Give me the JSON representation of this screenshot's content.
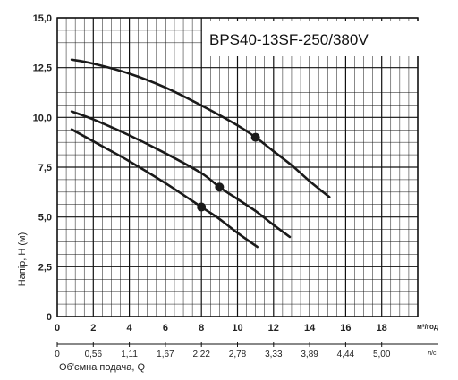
{
  "chart_data": {
    "type": "line",
    "title": "BPS40-13SF-250/380V",
    "ylabel": "Напір, H (м)",
    "xlabel": "Об'ємна  подача, Q",
    "x_unit": "м³/год",
    "x2_unit": "л/с",
    "xlim": [
      0,
      20
    ],
    "ylim": [
      0,
      15
    ],
    "x_ticks": [
      "0",
      "2",
      "4",
      "6",
      "8",
      "10",
      "12",
      "14",
      "16",
      "18"
    ],
    "y_ticks": [
      "0",
      "2,5",
      "5,0",
      "7,5",
      "10,0",
      "12,5",
      "15,0"
    ],
    "x2_ticks": [
      {
        "x": 0,
        "label": "0"
      },
      {
        "x": 2,
        "label": "0,56"
      },
      {
        "x": 4,
        "label": "1,11"
      },
      {
        "x": 6,
        "label": "1,67"
      },
      {
        "x": 8,
        "label": "2,22"
      },
      {
        "x": 10,
        "label": "2,78"
      },
      {
        "x": 12,
        "label": "3,33"
      },
      {
        "x": 14,
        "label": "3,89"
      },
      {
        "x": 16,
        "label": "4,44"
      },
      {
        "x": 18,
        "label": "5,00"
      }
    ],
    "grid": true,
    "series": [
      {
        "x": [
          0.8,
          2,
          4,
          6,
          8,
          10,
          11,
          12,
          13,
          14,
          15.1
        ],
        "y": [
          12.9,
          12.7,
          12.2,
          11.5,
          10.6,
          9.6,
          9.0,
          8.3,
          7.6,
          6.8,
          6.0
        ],
        "marker": {
          "x": 11,
          "y": 9.0
        }
      },
      {
        "x": [
          0.8,
          2,
          4,
          6,
          8,
          9,
          10,
          11,
          12,
          12.9
        ],
        "y": [
          10.3,
          9.9,
          9.1,
          8.2,
          7.2,
          6.5,
          5.9,
          5.3,
          4.6,
          4.0
        ],
        "marker": {
          "x": 9,
          "y": 6.5
        }
      },
      {
        "x": [
          0.8,
          2,
          4,
          6,
          8,
          9,
          10,
          11.1
        ],
        "y": [
          9.4,
          8.8,
          7.8,
          6.7,
          5.5,
          4.9,
          4.2,
          3.5
        ],
        "marker": {
          "x": 8,
          "y": 5.5
        }
      }
    ]
  }
}
